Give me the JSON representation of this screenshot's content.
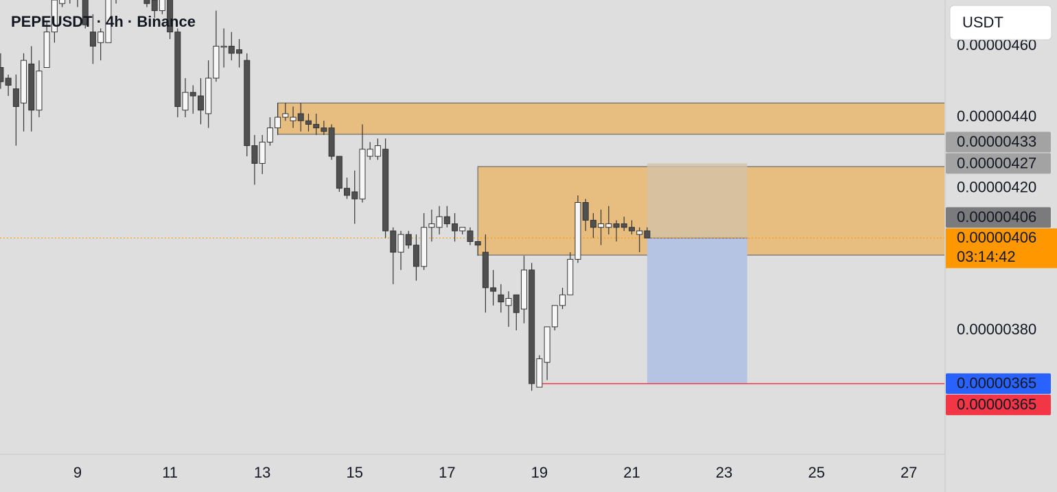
{
  "chart_data": {
    "type": "candlestick",
    "title": "PEPEUSDT · 4h · Binance",
    "x": [
      7.333,
      7.5,
      7.667,
      7.833,
      8,
      8.167,
      8.333,
      8.5,
      8.667,
      8.833,
      9,
      9.167,
      9.333,
      9.5,
      9.667,
      9.833,
      10,
      10.167,
      10.333,
      10.5,
      10.667,
      10.833,
      11,
      11.167,
      11.333,
      11.5,
      11.667,
      11.833,
      12,
      12.167,
      12.333,
      12.5,
      12.667,
      12.833,
      13,
      13.167,
      13.333,
      13.5,
      13.667,
      13.833,
      14,
      14.167,
      14.333,
      14.5,
      14.667,
      14.833,
      15,
      15.167,
      15.333,
      15.5,
      15.667,
      15.833,
      16,
      16.167,
      16.333,
      16.5,
      16.667,
      16.833,
      17,
      17.167,
      17.333,
      17.5,
      17.667,
      17.833,
      18,
      18.167,
      18.333,
      18.5,
      18.667,
      18.833,
      19,
      19.167,
      19.333,
      19.5,
      19.667,
      19.833,
      20,
      20.167,
      20.333,
      20.5,
      20.667,
      20.833,
      21,
      21.167,
      21.333
    ],
    "open": [
      4.54e-06,
      4.51e-06,
      4.48e-06,
      4.44e-06,
      4.55e-06,
      4.42e-06,
      4.54e-06,
      4.64e-06,
      4.72e-06,
      4.76e-06,
      4.78e-06,
      4.77e-06,
      4.64e-06,
      4.61e-06,
      4.61e-06,
      4.74e-06,
      4.78e-06,
      4.76e-06,
      4.79e-06,
      4.77e-06,
      4.73e-06,
      4.7e-06,
      4.75e-06,
      4.64e-06,
      4.42e-06,
      4.47e-06,
      4.46e-06,
      4.41e-06,
      4.51e-06,
      4.6e-06,
      4.6e-06,
      4.59e-06,
      4.56e-06,
      4.32e-06,
      4.27e-06,
      4.33e-06,
      4.37e-06,
      4.4e-06,
      4.39e-06,
      4.41e-06,
      4.39e-06,
      4.38e-06,
      4.37e-06,
      4.37e-06,
      4.29e-06,
      4.2e-06,
      4.19e-06,
      4.17e-06,
      4.29e-06,
      4.29e-06,
      4.31e-06,
      4.08e-06,
      4.02e-06,
      4.07e-06,
      4.04e-06,
      3.98e-06,
      4.09e-06,
      4.09e-06,
      4.12e-06,
      4.1e-06,
      4.08e-06,
      4.08e-06,
      4.05e-06,
      4.02e-06,
      3.92e-06,
      3.9e-06,
      3.87e-06,
      3.9e-06,
      3.86e-06,
      3.97e-06,
      3.64e-06,
      3.71e-06,
      3.81e-06,
      3.87e-06,
      3.9e-06,
      4e-06,
      4.16e-06,
      4.11e-06,
      4.09e-06,
      4.09e-06,
      4.1e-06,
      4.1e-06,
      4.09e-06,
      4.07e-06,
      4.08e-06
    ],
    "high": [
      4.58e-06,
      4.52e-06,
      4.52e-06,
      4.58e-06,
      4.6e-06,
      4.56e-06,
      4.67e-06,
      4.76e-06,
      4.8e-06,
      4.82e-06,
      4.81e-06,
      4.79e-06,
      4.69e-06,
      4.65e-06,
      4.76e-06,
      4.81e-06,
      4.82e-06,
      4.83e-06,
      4.82e-06,
      4.79e-06,
      4.75e-06,
      4.77e-06,
      4.77e-06,
      4.65e-06,
      4.51e-06,
      4.49e-06,
      4.51e-06,
      4.56e-06,
      4.7e-06,
      4.65e-06,
      4.64e-06,
      4.62e-06,
      4.58e-06,
      4.35e-06,
      4.35e-06,
      4.4e-06,
      4.44e-06,
      4.44e-06,
      4.43e-06,
      4.44e-06,
      4.41e-06,
      4.41e-06,
      4.39e-06,
      4.38e-06,
      4.29e-06,
      4.23e-06,
      4.25e-06,
      4.38e-06,
      4.33e-06,
      4.34e-06,
      4.34e-06,
      4.09e-06,
      4.08e-06,
      4.08e-06,
      4.07e-06,
      4.13e-06,
      4.14e-06,
      4.15e-06,
      4.15e-06,
      4.13e-06,
      4.09e-06,
      4.09e-06,
      4.05e-06,
      4.07e-06,
      3.97e-06,
      3.93e-06,
      3.91e-06,
      3.9e-06,
      4.01e-06,
      3.99e-06,
      3.73e-06,
      3.81e-06,
      3.87e-06,
      3.92e-06,
      4.02e-06,
      4.18e-06,
      4.17e-06,
      4.13e-06,
      4.14e-06,
      4.15e-06,
      4.11e-06,
      4.12e-06,
      4.11e-06,
      4.09e-06,
      4.09e-06
    ],
    "low": [
      4.48e-06,
      4.46e-06,
      4.32e-06,
      4.36e-06,
      4.36e-06,
      4.4e-06,
      4.54e-06,
      4.61e-06,
      4.71e-06,
      4.72e-06,
      4.71e-06,
      4.65e-06,
      4.55e-06,
      4.56e-06,
      4.61e-06,
      4.72e-06,
      4.74e-06,
      4.74e-06,
      4.75e-06,
      4.71e-06,
      4.68e-06,
      4.69e-06,
      4.62e-06,
      4.4e-06,
      4.4e-06,
      4.41e-06,
      4.38e-06,
      4.37e-06,
      4.5e-06,
      4.54e-06,
      4.56e-06,
      4.54e-06,
      4.29e-06,
      4.21e-06,
      4.24e-06,
      4.32e-06,
      4.35e-06,
      4.39e-06,
      4.37e-06,
      4.36e-06,
      4.36e-06,
      4.35e-06,
      4.35e-06,
      4.28e-06,
      4.19e-06,
      4.17e-06,
      4.1e-06,
      4.16e-06,
      4.28e-06,
      4.28e-06,
      4.06e-06,
      3.93e-06,
      3.97e-06,
      4.03e-06,
      3.94e-06,
      3.97e-06,
      4.05e-06,
      4.07e-06,
      4.09e-06,
      4.05e-06,
      4.07e-06,
      4.04e-06,
      4.01e-06,
      3.85e-06,
      3.87e-06,
      3.85e-06,
      3.81e-06,
      3.8e-06,
      3.82e-06,
      3.63e-06,
      3.64e-06,
      3.66e-06,
      3.8e-06,
      3.86e-06,
      3.9e-06,
      3.99e-06,
      4.08e-06,
      4.06e-06,
      4.04e-06,
      4.07e-06,
      4.05e-06,
      4.08e-06,
      4.07e-06,
      4.02e-06,
      4.06e-06
    ],
    "close": [
      4.5e-06,
      4.49e-06,
      4.43e-06,
      4.56e-06,
      4.42e-06,
      4.53e-06,
      4.64e-06,
      4.73e-06,
      4.78e-06,
      4.8e-06,
      4.76e-06,
      4.66e-06,
      4.6e-06,
      4.64e-06,
      4.74e-06,
      4.78e-06,
      4.76e-06,
      4.79e-06,
      4.77e-06,
      4.72e-06,
      4.7e-06,
      4.75e-06,
      4.64e-06,
      4.43e-06,
      4.47e-06,
      4.46e-06,
      4.42e-06,
      4.51e-06,
      4.6e-06,
      4.6e-06,
      4.58e-06,
      4.58e-06,
      4.32e-06,
      4.27e-06,
      4.33e-06,
      4.37e-06,
      4.4e-06,
      4.41e-06,
      4.4e-06,
      4.39e-06,
      4.38e-06,
      4.37e-06,
      4.36e-06,
      4.29e-06,
      4.2e-06,
      4.18e-06,
      4.17e-06,
      4.31e-06,
      4.31e-06,
      4.32e-06,
      4.08e-06,
      4.02e-06,
      4.07e-06,
      4.04e-06,
      3.98e-06,
      4.09e-06,
      4.1e-06,
      4.12e-06,
      4.1e-06,
      4.08e-06,
      4.09e-06,
      4.05e-06,
      4.04e-06,
      3.92e-06,
      3.91e-06,
      3.88e-06,
      3.89e-06,
      3.85e-06,
      3.97e-06,
      3.65e-06,
      3.72e-06,
      3.81e-06,
      3.87e-06,
      3.9e-06,
      4e-06,
      4.16e-06,
      4.11e-06,
      4.09e-06,
      4.1e-06,
      4.1e-06,
      4.09e-06,
      4.09e-06,
      4.08e-06,
      4.08e-06,
      4.06e-06
    ],
    "up_color": "#f7f7f7",
    "down_color": "#505050",
    "wick_color": "#333333",
    "xlim": [
      7.32,
      27.77
    ],
    "ylim": [
      3.453e-06,
      4.73e-06
    ],
    "xticks": [
      9,
      11,
      13,
      15,
      17,
      19,
      21,
      23,
      25,
      27
    ],
    "yticks": [
      {
        "value": 4.6e-06,
        "label": "0.00000460"
      },
      {
        "value": 4.4e-06,
        "label": "0.00000440"
      },
      {
        "value": 4.2e-06,
        "label": "0.00000420"
      },
      {
        "value": 3.8e-06,
        "label": "0.00000380"
      }
    ],
    "zones": [
      {
        "from": 13.333,
        "top": 4.44e-06,
        "bottom": 4.352e-06,
        "color": "#e8bd80"
      },
      {
        "from": 17.667,
        "top": 4.261e-06,
        "bottom": 4.012e-06,
        "color": "#e8bd80"
      }
    ],
    "position": {
      "from": 21.333,
      "to": 23.5,
      "entry": 4.06e-06,
      "stop": 4.27e-06,
      "target": 3.65e-06,
      "stop_color": "#d3c2a6",
      "target_color": "#b6c4e4"
    },
    "level_line": {
      "from": 19,
      "value": 3.65e-06,
      "color": "#f23645"
    },
    "price_labels": [
      {
        "value": 4.33e-06,
        "label": "0.00000433",
        "color": "#a3a3a3",
        "text_color": "#131722"
      },
      {
        "value": 4.27e-06,
        "label": "0.00000427",
        "color": "#a3a3a3",
        "text_color": "#131722"
      },
      {
        "value": 4.06e-06,
        "label": "0.00000406",
        "color": "#7b7b7d",
        "text_color": "#ffffff"
      },
      {
        "value": 3.65e-06,
        "label": "0.00000365",
        "color": "#2962ff",
        "text_color": "#ffffff"
      },
      {
        "value": 3.65e-06,
        "label": "0.00000365",
        "color": "#f23645",
        "text_color": "#ffffff"
      }
    ],
    "current_price": {
      "value": 4.06e-06,
      "label": "0.00000406",
      "countdown": "03:14:42",
      "color": "#ff9800",
      "text_color": "#131722"
    }
  },
  "currency_button": "USDT"
}
